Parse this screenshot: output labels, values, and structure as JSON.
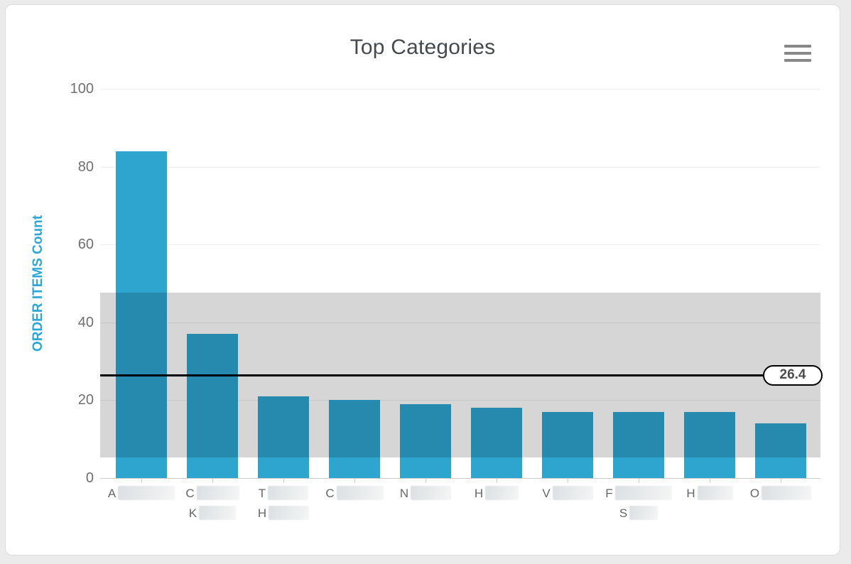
{
  "window": {
    "background": "#ebebeb"
  },
  "card": {
    "background": "#ffffff",
    "border_color": "#dcdcdc"
  },
  "toolbar": {
    "menu_icon": "hamburger-icon"
  },
  "chart_data": {
    "type": "bar",
    "title": "Top Categories",
    "ylabel": "ORDER ITEMS Count",
    "xlabel": "",
    "ylim": [
      0,
      100
    ],
    "yticks": [
      0,
      20,
      40,
      60,
      80,
      100
    ],
    "grid": true,
    "legend": "none",
    "values": [
      84,
      37,
      21,
      20,
      19,
      18,
      17,
      17,
      17,
      14
    ],
    "categories": [
      {
        "lines": [
          {
            "text": "A",
            "redacted_width": 80
          }
        ]
      },
      {
        "lines": [
          {
            "text": "C",
            "redacted_width": 60
          },
          {
            "text": "K",
            "redacted_width": 52
          }
        ]
      },
      {
        "lines": [
          {
            "text": "T",
            "redacted_width": 57
          },
          {
            "text": "H",
            "redacted_width": 57
          }
        ]
      },
      {
        "lines": [
          {
            "text": "C",
            "redacted_width": 66
          }
        ]
      },
      {
        "lines": [
          {
            "text": "N",
            "redacted_width": 57
          }
        ]
      },
      {
        "lines": [
          {
            "text": "H",
            "redacted_width": 47
          }
        ]
      },
      {
        "lines": [
          {
            "text": "V",
            "redacted_width": 57
          }
        ]
      },
      {
        "lines": [
          {
            "text": "F",
            "redacted_width": 80
          },
          {
            "text": "S",
            "redacted_width": 40
          }
        ]
      },
      {
        "lines": [
          {
            "text": "H",
            "redacted_width": 50
          }
        ]
      },
      {
        "lines": [
          {
            "text": "O",
            "redacted_width": 70
          }
        ]
      }
    ],
    "mean_line": {
      "value": 26.4,
      "label": "26.4",
      "color": "#000000"
    },
    "band": {
      "from": 5.2,
      "to": 47.6,
      "color": "rgba(0,0,0,0.16)"
    },
    "colors": {
      "bar": "#2DA5CF",
      "ylabel": "#2EA6D6",
      "title": "#46494E",
      "tick_label": "#707070",
      "category_label": "#666666",
      "gridline": "#EFEFEF",
      "axis_line": "#CCCCCC",
      "menu_icon": "#888888",
      "mean_label_text": "#4D4D4D"
    }
  }
}
